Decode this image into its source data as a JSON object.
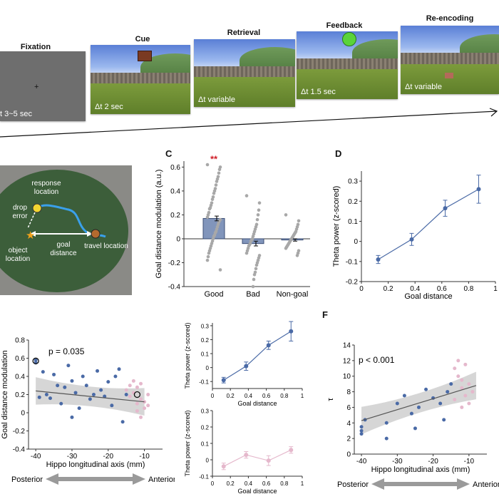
{
  "panel_letters": {
    "c": "C",
    "d": "D",
    "f": "F"
  },
  "task": {
    "steps": [
      {
        "title": "Fixation",
        "duration": "t  3~5 sec"
      },
      {
        "title": "Cue",
        "duration": "Δt 2 sec"
      },
      {
        "title": "Retrieval",
        "duration": "Δt  variable"
      },
      {
        "title": "Feedback",
        "duration": "Δt 1.5 sec"
      },
      {
        "title": "Re-encoding",
        "duration": "Δt  variable"
      }
    ]
  },
  "arena": {
    "response_location": "response location",
    "drop_error": "drop error",
    "object_location": "object location",
    "goal_distance": "goal distance",
    "travel_location": "travel location"
  },
  "colors": {
    "blue": "#4a6aa6",
    "pink": "#e5b8cc",
    "bar": "#8195bb",
    "gray_dot": "#a8a8a8",
    "sig": "#d0202a",
    "arrow": "#9a9a9a"
  },
  "chart_data": [
    {
      "id": "C",
      "type": "bar",
      "categories": [
        "Good",
        "Bad",
        "Non-goal"
      ],
      "values": [
        0.17,
        -0.04,
        -0.01
      ],
      "errors": [
        0.02,
        0.02,
        0.01
      ],
      "ylabel": "Goal distance modulation (a.u.)",
      "yticks": [
        "0.6",
        "0.4",
        "0.2",
        "0",
        "-0.2",
        "-0.4"
      ],
      "ylim": [
        -0.4,
        0.65
      ],
      "annotation": "**",
      "points": {
        "Good": [
          0.62,
          0.6,
          0.58,
          0.55,
          0.52,
          0.5,
          0.48,
          0.45,
          0.42,
          0.4,
          0.38,
          0.35,
          0.33,
          0.3,
          0.28,
          0.26,
          0.25,
          0.22,
          0.2,
          0.18,
          0.16,
          0.15,
          0.14,
          0.12,
          0.1,
          0.08,
          0.06,
          0.05,
          0.03,
          0.02,
          0.0,
          -0.02,
          -0.04,
          -0.06,
          -0.08,
          -0.1,
          -0.12,
          -0.15,
          -0.18,
          -0.26
        ],
        "Bad": [
          0.36,
          0.3,
          0.24,
          0.2,
          0.16,
          0.12,
          0.1,
          0.08,
          0.06,
          0.04,
          0.02,
          0.0,
          -0.01,
          -0.02,
          -0.04,
          -0.05,
          -0.06,
          -0.08,
          -0.1,
          -0.12,
          -0.14,
          -0.16,
          -0.18,
          -0.2,
          -0.22,
          -0.25,
          -0.28,
          -0.3,
          -0.34,
          -0.4
        ],
        "Non-goal": [
          0.2,
          0.15,
          0.12,
          0.1,
          0.08,
          0.06,
          0.05,
          0.04,
          0.03,
          0.02,
          0.01,
          0.0,
          -0.01,
          -0.02,
          -0.03,
          -0.04,
          -0.05,
          -0.06,
          -0.07,
          -0.08,
          -0.1,
          -0.12,
          -0.14
        ]
      }
    },
    {
      "id": "D",
      "type": "line",
      "x": [
        0.125,
        0.375,
        0.625,
        0.875
      ],
      "y": [
        -0.09,
        0.01,
        0.165,
        0.26
      ],
      "errors": [
        0.02,
        0.03,
        0.04,
        0.07
      ],
      "xlabel": "Goal distance",
      "ylabel": "Theta power (z-scored)",
      "xticks": [
        "0",
        "0.2",
        "0.4",
        "0.6",
        "0.8",
        "1"
      ],
      "yticks": [
        "0.3",
        "0.2",
        "0.1",
        "0",
        "-0.1",
        "-0.2"
      ],
      "xlim": [
        0,
        1
      ],
      "ylim": [
        -0.2,
        0.35
      ]
    },
    {
      "id": "E",
      "type": "scatter",
      "xlabel": "Hippo longitudinal axis (mm)",
      "ylabel": "Goal distance modulation",
      "annotation": "p = 0.035",
      "xticks": [
        "-40",
        "-30",
        "-20",
        "-10"
      ],
      "yticks": [
        "0.8",
        "0.6",
        "0.4",
        "0.2",
        "0",
        "-0.2",
        "-0.4"
      ],
      "xlim": [
        -42,
        -5
      ],
      "ylim": [
        -0.4,
        0.8
      ],
      "fit": {
        "x": [
          -40,
          -10
        ],
        "y": [
          0.24,
          0.12
        ]
      },
      "points_blue": [
        [
          -40,
          0.58
        ],
        [
          -40,
          0.55
        ],
        [
          -39,
          0.17
        ],
        [
          -38,
          0.45
        ],
        [
          -37,
          0.2
        ],
        [
          -36,
          0.16
        ],
        [
          -35,
          0.42
        ],
        [
          -34,
          0.3
        ],
        [
          -33,
          0.1
        ],
        [
          -32,
          0.28
        ],
        [
          -31,
          0.52
        ],
        [
          -30,
          0.35
        ],
        [
          -29,
          0.22
        ],
        [
          -28,
          0.05
        ],
        [
          -27,
          0.4
        ],
        [
          -26,
          0.3
        ],
        [
          -25,
          0.15
        ],
        [
          -24,
          0.2
        ],
        [
          -23,
          0.46
        ],
        [
          -22,
          0.25
        ],
        [
          -21,
          0.18
        ],
        [
          -20,
          0.34
        ],
        [
          -19,
          0.08
        ],
        [
          -18,
          0.4
        ],
        [
          -17,
          0.48
        ],
        [
          -16,
          -0.1
        ],
        [
          -15,
          0.2
        ],
        [
          -30,
          -0.05
        ]
      ],
      "points_pink": [
        [
          -14,
          0.3
        ],
        [
          -13,
          0.22
        ],
        [
          -12,
          0.1
        ],
        [
          -11,
          0.15
        ],
        [
          -10,
          0.05
        ],
        [
          -9,
          0.2
        ],
        [
          -13,
          0.35
        ],
        [
          -12,
          0.28
        ],
        [
          -11,
          -0.05
        ],
        [
          -10,
          0.12
        ],
        [
          -14,
          0.18
        ],
        [
          -12,
          0.02
        ],
        [
          -9,
          0.08
        ],
        [
          -15,
          0.25
        ],
        [
          -11,
          0.32
        ]
      ],
      "highlight": [
        [
          -40,
          0.57
        ],
        [
          -12,
          0.2
        ]
      ],
      "bottom_left": "Posterior",
      "bottom_right": "Anterior"
    },
    {
      "id": "E-inset-top",
      "type": "line",
      "x": [
        0.125,
        0.375,
        0.625,
        0.875
      ],
      "y": [
        -0.09,
        0.01,
        0.16,
        0.26
      ],
      "errors": [
        0.02,
        0.03,
        0.03,
        0.07
      ],
      "xlabel": "Goal distance",
      "ylabel": "Theta power (z-scored)",
      "xticks": [
        "0",
        "0.2",
        "0.4",
        "0.6",
        "0.8",
        "1"
      ],
      "yticks": [
        "0.3",
        "0.2",
        "0.1",
        "0",
        "-0.1"
      ],
      "xlim": [
        0,
        1
      ],
      "ylim": [
        -0.15,
        0.32
      ]
    },
    {
      "id": "E-inset-bottom",
      "type": "line",
      "x": [
        0.125,
        0.375,
        0.625,
        0.875
      ],
      "y": [
        -0.04,
        0.03,
        -0.005,
        0.06
      ],
      "errors": [
        0.02,
        0.02,
        0.03,
        0.02
      ],
      "xlabel": "Goal distance",
      "ylabel": "Theta power (z-scored)",
      "xticks": [
        "0",
        "0.2",
        "0.4",
        "0.6",
        "0.8",
        "1"
      ],
      "yticks": [
        "0.3",
        "0.2",
        "0.1",
        "0",
        "-0.1"
      ],
      "xlim": [
        0,
        1
      ],
      "ylim": [
        -0.1,
        0.3
      ]
    },
    {
      "id": "F",
      "type": "scatter",
      "xlabel": "Hippo longitudinal axis (mm)",
      "ylabel": "τ",
      "annotation": "p < 0.001",
      "xticks": [
        "-40",
        "-30",
        "-20",
        "-10"
      ],
      "yticks": [
        "14",
        "12",
        "10",
        "8",
        "6",
        "4",
        "2",
        "0"
      ],
      "xlim": [
        -42,
        -5
      ],
      "ylim": [
        0,
        14
      ],
      "fit": {
        "x": [
          -40,
          -8
        ],
        "y": [
          4.3,
          8.8
        ]
      },
      "points_blue": [
        [
          -40,
          3.5
        ],
        [
          -40,
          3
        ],
        [
          -40,
          2.6
        ],
        [
          -39,
          4.4
        ],
        [
          -33,
          2
        ],
        [
          -33,
          4
        ],
        [
          -30,
          6.5
        ],
        [
          -28,
          7.5
        ],
        [
          -26,
          5.2
        ],
        [
          -25,
          3.3
        ],
        [
          -24,
          6
        ],
        [
          -22,
          8.3
        ],
        [
          -20,
          7.2
        ],
        [
          -18,
          6.5
        ],
        [
          -17,
          4.4
        ],
        [
          -16,
          8
        ],
        [
          -15,
          9
        ]
      ],
      "points_pink": [
        [
          -14,
          11
        ],
        [
          -13,
          12
        ],
        [
          -13,
          10
        ],
        [
          -12,
          9.5
        ],
        [
          -12,
          8.5
        ],
        [
          -11,
          7.5
        ],
        [
          -10,
          9
        ],
        [
          -10,
          6.5
        ],
        [
          -9,
          8
        ],
        [
          -14,
          7
        ],
        [
          -11,
          11.5
        ],
        [
          -12,
          6
        ]
      ],
      "bottom_left": "Posterior",
      "bottom_right": "Anterior"
    }
  ]
}
